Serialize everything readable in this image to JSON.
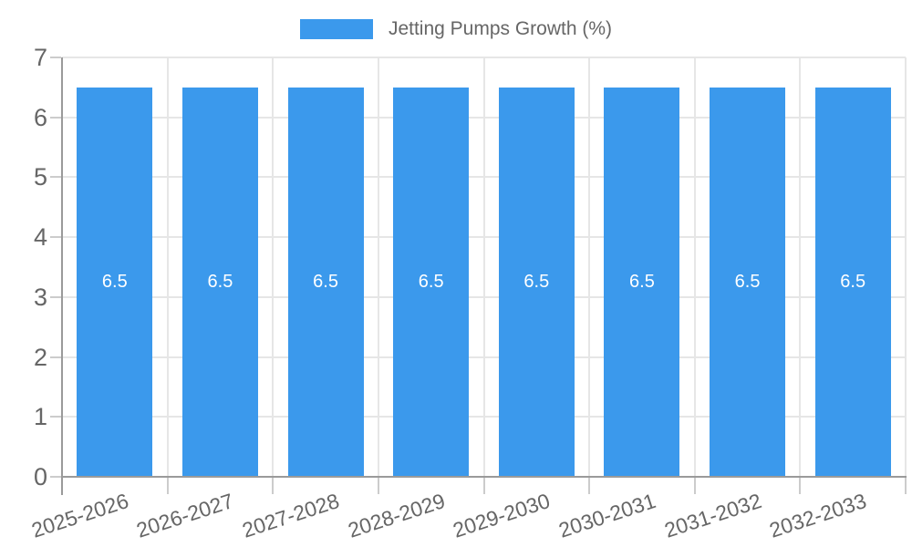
{
  "legend": {
    "position": "top",
    "items": [
      {
        "label": "Jetting Pumps Growth (%)",
        "color": "#3b99ec"
      }
    ]
  },
  "chart_data": {
    "type": "bar",
    "title": "",
    "categories": [
      "2025-2026",
      "2026-2027",
      "2027-2028",
      "2028-2029",
      "2029-2030",
      "2030-2031",
      "2031-2032",
      "2032-2033"
    ],
    "series": [
      {
        "name": "Jetting Pumps Growth (%)",
        "color": "#3b99ec",
        "values": [
          6.5,
          6.5,
          6.5,
          6.5,
          6.5,
          6.5,
          6.5,
          6.5
        ]
      }
    ],
    "bar_value_labels": [
      "6.5",
      "6.5",
      "6.5",
      "6.5",
      "6.5",
      "6.5",
      "6.5",
      "6.5"
    ],
    "xlabel": "",
    "ylabel": "",
    "ylim": [
      0,
      7
    ],
    "ytick_step": 1,
    "yticks": [
      0,
      1,
      2,
      3,
      4,
      5,
      6,
      7
    ],
    "grid": true,
    "legend_position": "top",
    "x_label_rotation_deg": -18,
    "colors": {
      "bar_fill": "#3b99ec",
      "bar_label_text": "#ffffff",
      "axis_text": "#666666",
      "grid_line": "#e6e6e6",
      "axis_line": "#9a9a9a",
      "tick_mark": "#cccccc",
      "background": "#ffffff"
    }
  }
}
